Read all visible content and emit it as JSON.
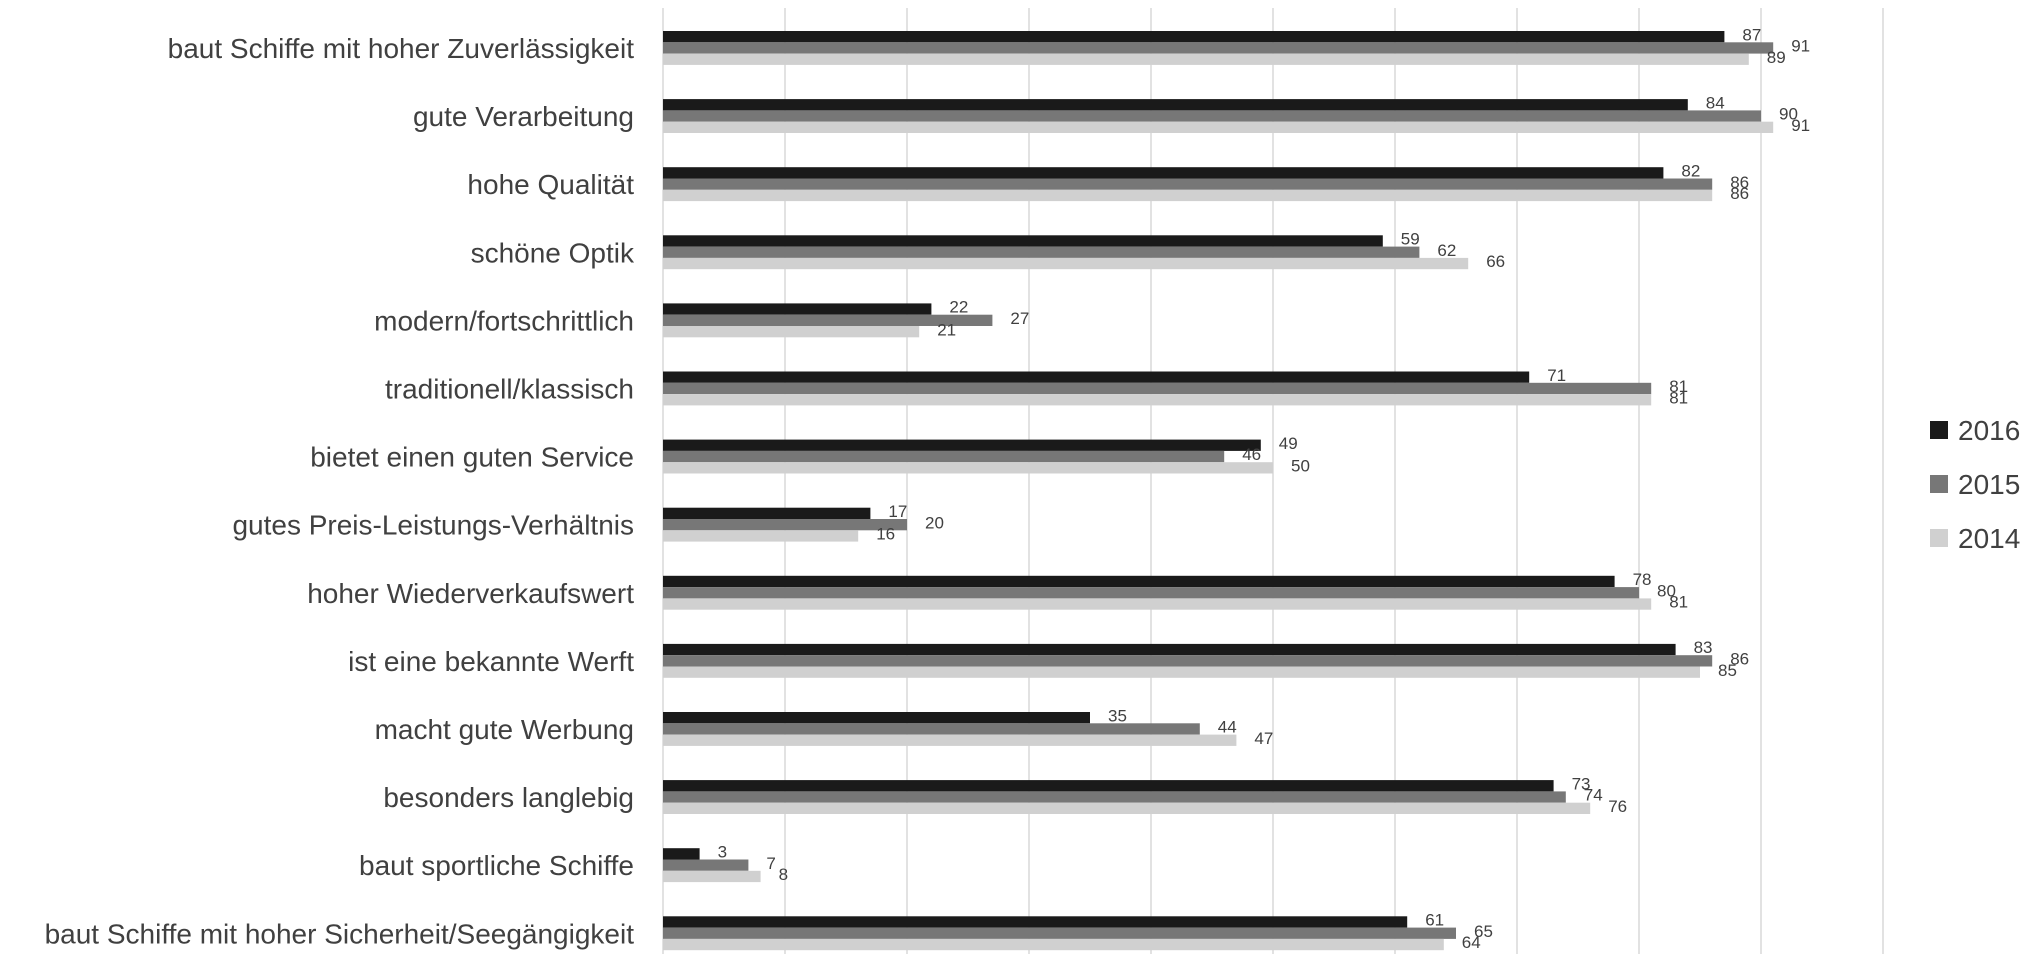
{
  "chart_data": {
    "type": "bar",
    "orientation": "horizontal",
    "categories": [
      "baut Schiffe mit hoher Zuverlässigkeit",
      "gute Verarbeitung",
      "hohe Qualität",
      "schöne Optik",
      "modern/fortschrittlich",
      "traditionell/klassisch",
      "bietet einen guten Service",
      "gutes Preis-Leistungs-Verhältnis",
      "hoher Wiederverkaufswert",
      "ist eine bekannte Werft",
      "macht gute Werbung",
      "besonders langlebig",
      "baut sportliche Schiffe",
      "baut Schiffe mit hoher Sicherheit/Seegängigkeit"
    ],
    "series": [
      {
        "name": "2016",
        "color": "#1a1a1a",
        "values": [
          87,
          84,
          82,
          59,
          22,
          71,
          49,
          17,
          78,
          83,
          35,
          73,
          3,
          61
        ]
      },
      {
        "name": "2015",
        "color": "#777777",
        "values": [
          91,
          90,
          86,
          62,
          27,
          81,
          46,
          20,
          80,
          86,
          44,
          74,
          7,
          65
        ]
      },
      {
        "name": "2014",
        "color": "#d0d0d0",
        "values": [
          89,
          91,
          86,
          66,
          21,
          81,
          50,
          16,
          81,
          85,
          47,
          76,
          8,
          64
        ]
      }
    ],
    "xlim": [
      0,
      100
    ],
    "grid": true,
    "legend_position": "right",
    "title": "",
    "xlabel": "",
    "ylabel": ""
  }
}
